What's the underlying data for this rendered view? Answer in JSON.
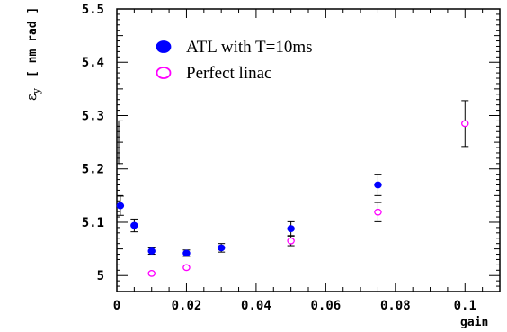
{
  "chart_data": {
    "type": "scatter",
    "title": "",
    "xlabel": "gain",
    "ylabel": "ε_y [ nm rad ]",
    "ylabel_symbol": "ε",
    "ylabel_sub": "y",
    "ylabel_unit": "[ nm rad ]",
    "xlim": [
      0,
      0.11
    ],
    "ylim": [
      4.97,
      5.5
    ],
    "x_ticks": [
      "0",
      "0.02",
      "0.04",
      "0.06",
      "0.08",
      "0.1"
    ],
    "x_tick_values": [
      0,
      0.02,
      0.04,
      0.06,
      0.08,
      0.1
    ],
    "y_ticks": [
      "5",
      "5.1",
      "5.2",
      "5.3",
      "5.4",
      "5.5"
    ],
    "y_tick_values": [
      5.0,
      5.1,
      5.2,
      5.3,
      5.4,
      5.5
    ],
    "legend_position": "top-left",
    "reference_errorbar": {
      "x": 0,
      "low": 5.21,
      "high": 5.29
    },
    "series": [
      {
        "name": "ATL with T=10ms",
        "marker": "filled-circle",
        "color": "#0000ff",
        "points": [
          {
            "x": 0.001,
            "y": 5.131,
            "err": 0.018
          },
          {
            "x": 0.005,
            "y": 5.094,
            "err": 0.012
          },
          {
            "x": 0.01,
            "y": 5.046,
            "err": 0.006
          },
          {
            "x": 0.02,
            "y": 5.042,
            "err": 0.006
          },
          {
            "x": 0.03,
            "y": 5.052,
            "err": 0.008
          },
          {
            "x": 0.05,
            "y": 5.088,
            "err": 0.013
          },
          {
            "x": 0.075,
            "y": 5.17,
            "err": 0.02
          }
        ]
      },
      {
        "name": "Perfect linac",
        "marker": "open-circle",
        "color": "#ff00ff",
        "points": [
          {
            "x": 0.01,
            "y": 5.004,
            "err": 0
          },
          {
            "x": 0.02,
            "y": 5.015,
            "err": 0
          },
          {
            "x": 0.05,
            "y": 5.065,
            "err": 0.009
          },
          {
            "x": 0.075,
            "y": 5.119,
            "err": 0.018
          },
          {
            "x": 0.1,
            "y": 5.285,
            "err": 0.043
          }
        ]
      }
    ]
  }
}
